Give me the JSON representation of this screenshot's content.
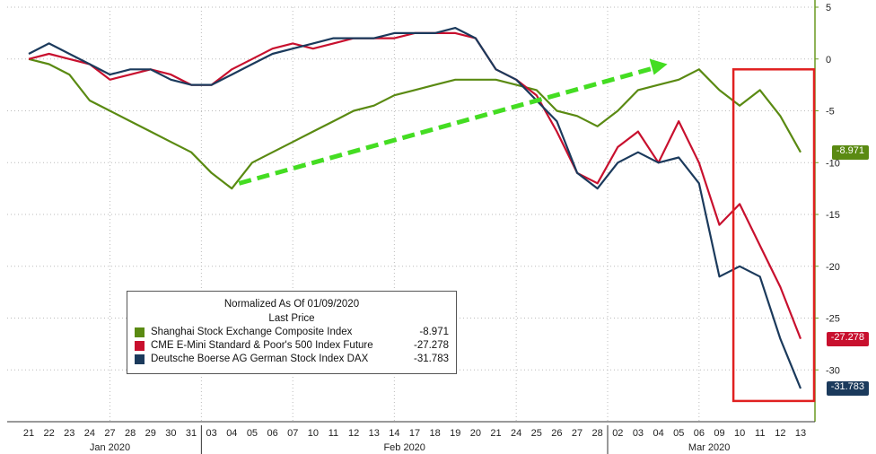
{
  "chart_data": {
    "type": "line",
    "legend_title": "Normalized As Of 01/09/2020",
    "legend_subtitle": "Last Price",
    "legend_placement": "bottom-left",
    "ylim": [
      -35,
      5
    ],
    "yticks": [
      5,
      0,
      -5,
      -10,
      -15,
      -20,
      -25,
      -30
    ],
    "grid": true,
    "x_day_labels": [
      "21",
      "22",
      "23",
      "24",
      "27",
      "28",
      "29",
      "30",
      "31",
      "03",
      "04",
      "05",
      "06",
      "07",
      "10",
      "11",
      "12",
      "13",
      "14",
      "17",
      "18",
      "19",
      "20",
      "21",
      "24",
      "25",
      "26",
      "27",
      "28",
      "02",
      "03",
      "04",
      "05",
      "06",
      "09",
      "10",
      "11",
      "12",
      "13"
    ],
    "month_labels": [
      "Jan 2020",
      "Feb 2020",
      "Mar 2020"
    ],
    "series": [
      {
        "name": "Shanghai Stock Exchange Composite Index",
        "last": "-8.971",
        "color": "#5a8a12",
        "values": [
          0,
          -0.5,
          -1.5,
          -4,
          -5,
          -6,
          -7,
          -8,
          -9,
          -11,
          -12.5,
          -10,
          -9,
          -8,
          -7,
          -6,
          -5,
          -4.5,
          -3.5,
          -3,
          -2.5,
          -2,
          -2,
          -2,
          -2.5,
          -3,
          -5,
          -5.5,
          -6.5,
          -5,
          -3,
          -2.5,
          -2,
          -1,
          -3,
          -4.5,
          -3,
          -5.5,
          -9
        ]
      },
      {
        "name": "CME E-Mini Standard & Poor's 500 Index Future",
        "last": "-27.278",
        "color": "#c8102e",
        "values": [
          0,
          0.5,
          0,
          -0.5,
          -2,
          -1.5,
          -1,
          -1.5,
          -2.5,
          -2.5,
          -1,
          0,
          1,
          1.5,
          1,
          1.5,
          2,
          2,
          2,
          2.5,
          2.5,
          2.5,
          2,
          -1,
          -2,
          -3.5,
          -7,
          -11,
          -12,
          -8.5,
          -7,
          -10,
          -6,
          -10,
          -16,
          -14,
          -18,
          -22,
          -27
        ]
      },
      {
        "name": "Deutsche Boerse AG German Stock Index DAX",
        "last": "-31.783",
        "color": "#1b3a5c",
        "values": [
          0.5,
          1.5,
          0.5,
          -0.5,
          -1.5,
          -1,
          -1,
          -2,
          -2.5,
          -2.5,
          -1.5,
          -0.5,
          0.5,
          1,
          1.5,
          2,
          2,
          2,
          2.5,
          2.5,
          2.5,
          3,
          2,
          -1,
          -2,
          -4,
          -6,
          -11,
          -12.5,
          -10,
          -9,
          -10,
          -9.5,
          -12,
          -21,
          -20,
          -21,
          -27,
          -31.8
        ]
      }
    ],
    "annotations": [
      {
        "type": "arrow",
        "style": "dashed",
        "color": "#44dd22"
      },
      {
        "type": "box",
        "color": "#e02020"
      }
    ]
  }
}
